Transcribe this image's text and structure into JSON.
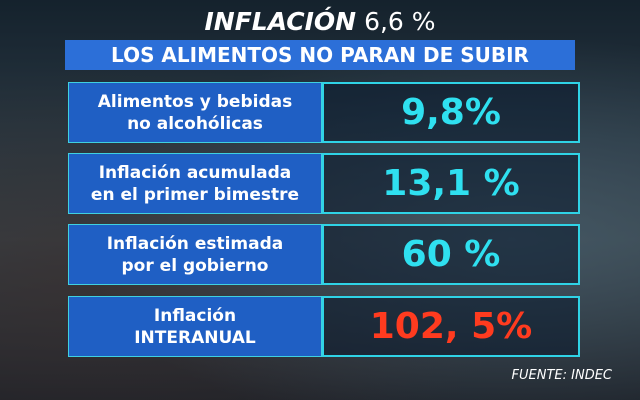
{
  "header": {
    "title_bold": "INFLACIÓN",
    "title_value": "6,6 %",
    "subtitle": "LOS ALIMENTOS NO PARAN DE SUBIR"
  },
  "rows": [
    {
      "label_lines": [
        "Alimentos y bebidas",
        "no alcohólicas"
      ],
      "value": "9,8%"
    },
    {
      "label_lines": [
        "Inflación acumulada",
        "en el primer bimestre"
      ],
      "value": "13,1 %"
    },
    {
      "label_lines": [
        "Inflación estimada",
        "por el gobierno"
      ],
      "value": "60 %"
    },
    {
      "label_lines": [
        "Inflación",
        "INTERANUAL"
      ],
      "value": "102, 5%"
    }
  ],
  "source": "FUENTE: INDEC"
}
